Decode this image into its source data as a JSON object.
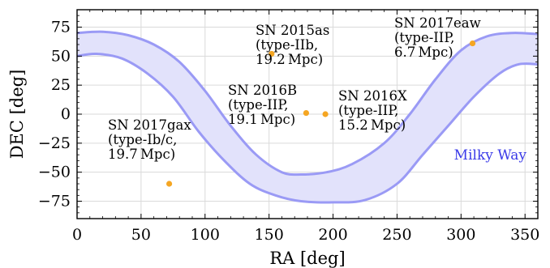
{
  "chart_data": {
    "type": "scatter",
    "xlabel": "RA [deg]",
    "ylabel": "DEC [deg]",
    "xlim": [
      0,
      360
    ],
    "ylim": [
      -90,
      90
    ],
    "xticks": [
      0,
      50,
      100,
      150,
      200,
      250,
      300,
      350
    ],
    "yticks": [
      75,
      50,
      25,
      0,
      -25,
      -50,
      -75
    ],
    "ytick_labels": [
      "75",
      "50",
      "25",
      "0",
      "−25",
      "−50",
      "−75"
    ],
    "grid": true,
    "point_color": "#f5a623",
    "band_color": "#9a9af5",
    "band_fill": "#e2e2fb",
    "points": [
      {
        "name": "SN 2017gax",
        "ra": 72,
        "dec": -60,
        "label_lines": [
          "SN 2017gax",
          "(type-Ib/c,",
          "19.7 Mpc)"
        ]
      },
      {
        "name": "SN 2015as",
        "ra": 152,
        "dec": 52,
        "label_lines": [
          "SN 2015as",
          "(type-IIb,",
          "19.2 Mpc)"
        ]
      },
      {
        "name": "SN 2016B",
        "ra": 179,
        "dec": 1,
        "label_lines": [
          "SN 2016B",
          "(type-IIP,",
          "19.1 Mpc)"
        ]
      },
      {
        "name": "SN 2016X",
        "ra": 194,
        "dec": 0,
        "label_lines": [
          "SN 2016X",
          "(type-IIP,",
          "15.2 Mpc)"
        ]
      },
      {
        "name": "SN 2017eaw",
        "ra": 309,
        "dec": 61,
        "label_lines": [
          "SN 2017eaw",
          "(type-IIP,",
          "6.7 Mpc)"
        ]
      }
    ],
    "milky_way": {
      "label": "Milky Way",
      "upper_edge": [
        [
          0,
          70
        ],
        [
          20,
          71
        ],
        [
          40,
          68
        ],
        [
          60,
          60
        ],
        [
          80,
          45
        ],
        [
          100,
          20
        ],
        [
          120,
          -10
        ],
        [
          140,
          -35
        ],
        [
          160,
          -50
        ],
        [
          175,
          -52
        ],
        [
          195,
          -50
        ],
        [
          215,
          -43
        ],
        [
          240,
          -25
        ],
        [
          260,
          0
        ],
        [
          280,
          30
        ],
        [
          300,
          55
        ],
        [
          320,
          67
        ],
        [
          340,
          70
        ],
        [
          360,
          69
        ]
      ],
      "lower_edge": [
        [
          0,
          50
        ],
        [
          15,
          52
        ],
        [
          35,
          48
        ],
        [
          55,
          35
        ],
        [
          75,
          15
        ],
        [
          95,
          -15
        ],
        [
          115,
          -40
        ],
        [
          135,
          -60
        ],
        [
          155,
          -70
        ],
        [
          175,
          -75
        ],
        [
          200,
          -76
        ],
        [
          225,
          -74
        ],
        [
          250,
          -60
        ],
        [
          270,
          -35
        ],
        [
          290,
          -10
        ],
        [
          310,
          15
        ],
        [
          330,
          35
        ],
        [
          345,
          43
        ],
        [
          360,
          43
        ]
      ]
    }
  }
}
